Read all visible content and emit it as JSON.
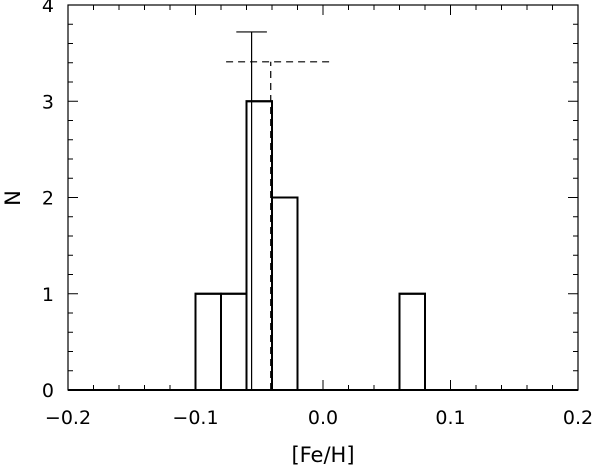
{
  "chart_data": {
    "type": "histogram",
    "title": "",
    "xlabel": "[Fe/H]",
    "ylabel": "N",
    "xlim": [
      -0.2,
      0.2
    ],
    "ylim": [
      0,
      4
    ],
    "x_ticks": [
      -0.2,
      -0.1,
      0.0,
      0.1,
      0.2
    ],
    "x_tick_labels": [
      "−0.2",
      "−0.1",
      "0.0",
      "0.1",
      "0.2"
    ],
    "y_ticks": [
      0,
      1,
      2,
      3,
      4
    ],
    "y_tick_labels": [
      "0",
      "1",
      "2",
      "3",
      "4"
    ],
    "bin_width": 0.02,
    "bins": [
      {
        "x0": -0.1,
        "x1": -0.08,
        "count": 1
      },
      {
        "x0": -0.08,
        "x1": -0.06,
        "count": 1
      },
      {
        "x0": -0.06,
        "x1": -0.04,
        "count": 3
      },
      {
        "x0": -0.04,
        "x1": -0.02,
        "count": 2
      },
      {
        "x0": 0.06,
        "x1": 0.08,
        "count": 1
      }
    ],
    "reference_lines": [
      {
        "style": "solid",
        "x": -0.056,
        "y_top": 3.72,
        "whisker_from": -0.068,
        "whisker_to": -0.044
      },
      {
        "style": "dashed",
        "x": -0.041,
        "y_top": 3.41,
        "whisker_from": -0.076,
        "whisker_to": 0.006
      }
    ],
    "grid": false,
    "legend": "none"
  }
}
